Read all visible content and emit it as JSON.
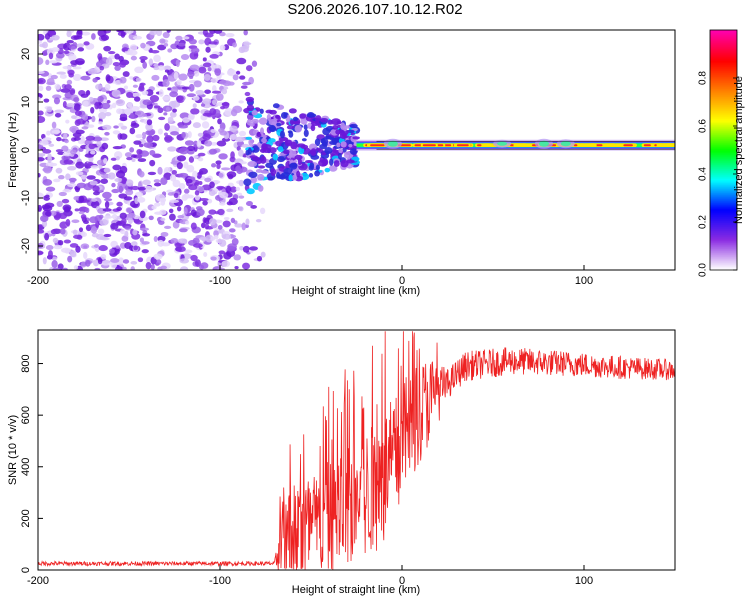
{
  "title": "S206.2026.107.10.12.R02",
  "chart_data": [
    {
      "type": "heatmap",
      "title": "S206.2026.107.10.12.R02",
      "xlabel": "Height of straight line (km)",
      "ylabel": "Frequency (Hz)",
      "xlim": [
        -200,
        150
      ],
      "ylim": [
        -25,
        25
      ],
      "xticks": [
        -200,
        -100,
        0,
        100
      ],
      "yticks": [
        -20,
        -10,
        0,
        10,
        20
      ],
      "colorbar": {
        "label": "Normalized spectral amplitude",
        "range": [
          0.0,
          1.0
        ],
        "ticks": [
          0.0,
          0.2,
          0.4,
          0.6,
          0.8
        ],
        "colors": [
          "#ffffff",
          "#8a2be2",
          "#0000ff",
          "#00ffff",
          "#00ff00",
          "#ffff00",
          "#ff8000",
          "#ff0000",
          "#ff00aa"
        ]
      },
      "description_points": {
        "noise_region_x": [
          -200,
          -80
        ],
        "transition_x": [
          -85,
          -25
        ],
        "signal_frequency_hz": 1,
        "signal_x": [
          -25,
          150
        ]
      }
    },
    {
      "type": "line",
      "xlabel": "Height of straight line (km)",
      "ylabel": "SNR (10 * v/v)",
      "xlim": [
        -200,
        150
      ],
      "ylim": [
        0,
        930
      ],
      "xticks": [
        -200,
        -100,
        0,
        100
      ],
      "yticks": [
        0,
        200,
        400,
        600,
        800
      ],
      "line_color": "#ee2222",
      "profile_points": [
        {
          "x": -200,
          "y": 25
        },
        {
          "x": -70,
          "y": 25
        },
        {
          "x": -65,
          "y": 120
        },
        {
          "x": -55,
          "y": 150
        },
        {
          "x": -45,
          "y": 170
        },
        {
          "x": -35,
          "y": 230
        },
        {
          "x": -25,
          "y": 270
        },
        {
          "x": -15,
          "y": 320
        },
        {
          "x": -5,
          "y": 420
        },
        {
          "x": 5,
          "y": 570
        },
        {
          "x": 15,
          "y": 660
        },
        {
          "x": 25,
          "y": 720
        },
        {
          "x": 35,
          "y": 790
        },
        {
          "x": 60,
          "y": 810
        },
        {
          "x": 90,
          "y": 800
        },
        {
          "x": 120,
          "y": 785
        },
        {
          "x": 150,
          "y": 775
        }
      ],
      "noise_amplitude": [
        {
          "x": -200,
          "y": 8
        },
        {
          "x": -70,
          "y": 8
        },
        {
          "x": -65,
          "y": 200
        },
        {
          "x": -30,
          "y": 240
        },
        {
          "x": -10,
          "y": 260
        },
        {
          "x": 15,
          "y": 180
        },
        {
          "x": 25,
          "y": 60
        },
        {
          "x": 150,
          "y": 40
        }
      ]
    }
  ]
}
